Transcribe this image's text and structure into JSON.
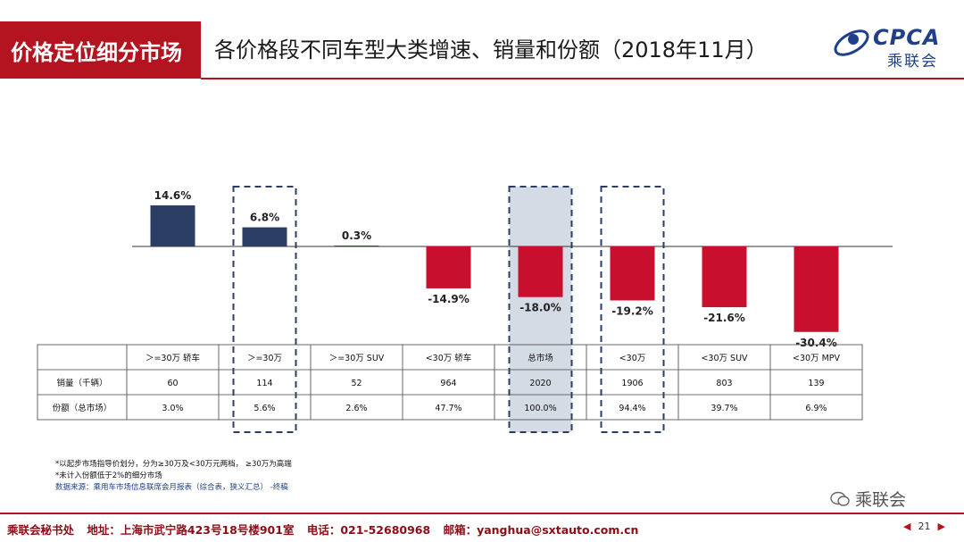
{
  "header": {
    "section_tag": "价格定位细分市场",
    "title": "各价格段不同车型大类增速、销量和份额（2018年11月）",
    "logo_text": "CPCA",
    "logo_subtext": "乘联会"
  },
  "chart_data": {
    "type": "bar",
    "title": "各价格段不同车型大类增速、销量和份额（2018年11月）",
    "categories": [
      ">=30万 轿车",
      ">=30万",
      ">=30万 SUV",
      "<30万 轿车",
      "总市场",
      "<30万",
      "<30万 SUV",
      "<30万 MPV"
    ],
    "category_labels": [
      "＞=30万 轿车",
      "＞=30万",
      "＞=30万 SUV",
      "<30万 轿车",
      "总市场",
      "<30万",
      "<30万 SUV",
      "<30万 MPV"
    ],
    "growth": [
      14.6,
      6.8,
      0.3,
      -14.9,
      -18.0,
      -19.2,
      -21.6,
      -30.4
    ],
    "growth_labels": [
      "14.6%",
      "6.8%",
      "0.3%",
      "-14.9%",
      "-18.0%",
      "-19.2%",
      "-21.6%",
      "-30.4%"
    ],
    "ylim": [
      -32,
      18
    ],
    "table_rows": [
      {
        "label": "销量（千辆）",
        "values": [
          "60",
          "114",
          "52",
          "964",
          "2020",
          "1906",
          "803",
          "139"
        ]
      },
      {
        "label": "份额（总市场）",
        "values": [
          "3.0%",
          "5.6%",
          "2.6%",
          "47.7%",
          "100.0%",
          "94.4%",
          "39.7%",
          "6.9%"
        ]
      }
    ],
    "highlighted": [
      ">=30万",
      "总市场",
      "<30万"
    ],
    "colors": {
      "positive": "#2c3e63",
      "negative": "#c8102e",
      "highlight_fill": "#d5dbe5",
      "highlight_border": "#2c3e63"
    }
  },
  "notes": {
    "line1": "*以起步市场指导价划分，分为≥30万及<30万元两档，  ≥30万为高端",
    "line2": "*未计入份额低于2%的细分市场",
    "source": "数据来源：乘用车市场信息联席会月报表（综合表，狭义汇总）  -终稿"
  },
  "watermark": "乘联会",
  "footer": {
    "org": "乘联会秘书处",
    "address": "地址：上海市武宁路423号18号楼901室",
    "phone": "电话：021-52680968",
    "email": "邮箱：yanghua@sxtauto.com.cn",
    "page": "21"
  }
}
